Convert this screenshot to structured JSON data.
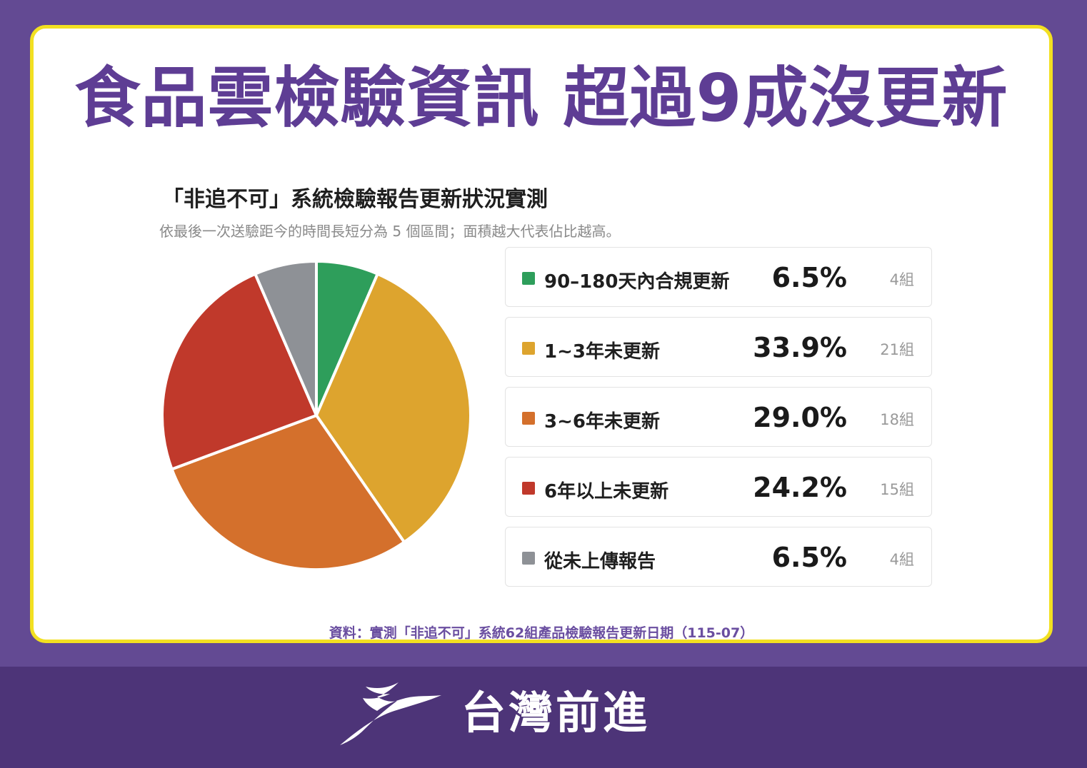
{
  "header": {
    "title": "食品雲檢驗資訊 超過9成沒更新"
  },
  "chart_title": "「非追不可」系統檢驗報告更新狀況實測",
  "chart_subtitle": "依最後一次送驗距今的時間長短分為 5 個區間；面積越大代表佔比越高。",
  "chart_data": {
    "type": "pie",
    "categories": [
      "90–180天內合規更新",
      "1~3年未更新",
      "3~6年未更新",
      "6年以上未更新",
      "從未上傳報告"
    ],
    "values": [
      6.5,
      33.9,
      29.0,
      24.2,
      6.5
    ],
    "counts": [
      4,
      21,
      18,
      15,
      4
    ],
    "colors": [
      "#2e9e5b",
      "#dda42e",
      "#d4702c",
      "#c0392b",
      "#8e9196"
    ],
    "title": "「非追不可」系統檢驗報告更新狀況實測",
    "legend_position": "right"
  },
  "legend": [
    {
      "label": "90–180天內合規更新",
      "pct": "6.5%",
      "count": "4組"
    },
    {
      "label": "1~3年未更新",
      "pct": "33.9%",
      "count": "21組"
    },
    {
      "label": "3~6年未更新",
      "pct": "29.0%",
      "count": "18組"
    },
    {
      "label": "6年以上未更新",
      "pct": "24.2%",
      "count": "15組"
    },
    {
      "label": "從未上傳報告",
      "pct": "6.5%",
      "count": "4組"
    }
  ],
  "source": "資料：實測「非追不可」系統62組產品檢驗報告更新日期（115-07）",
  "footer": {
    "brand_name": "台灣前進",
    "logo_icon": "bird-logo-icon"
  }
}
